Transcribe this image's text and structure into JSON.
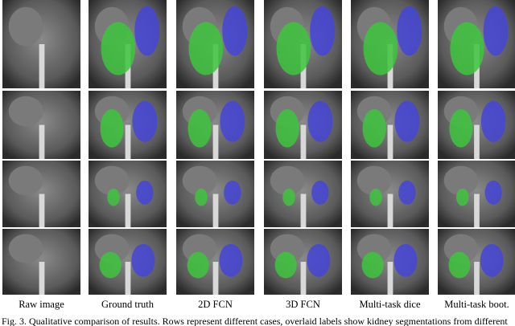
{
  "figure": {
    "columns": [
      "Raw image",
      "Ground truth",
      "2D FCN",
      "3D FCN",
      "Multi-task dice",
      "Multi-task boot."
    ],
    "caption": "Fig. 3. Qualitative comparison of results. Rows represent different cases, overlaid labels show kidney segmentations from different"
  }
}
